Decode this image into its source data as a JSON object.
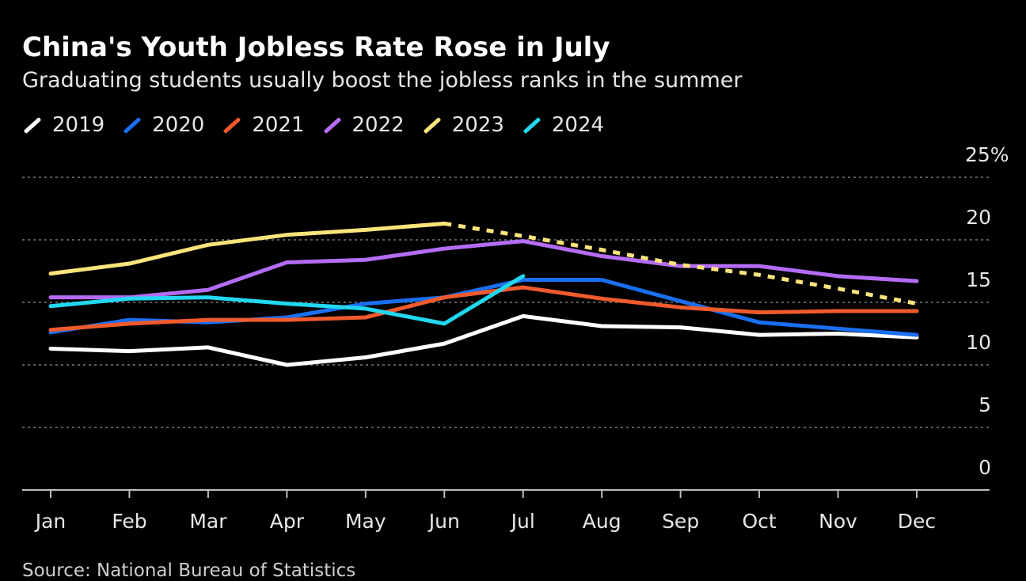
{
  "header": {
    "title": "China's Youth Jobless Rate Rose in July",
    "subtitle": "Graduating students usually boost the jobless ranks in the summer"
  },
  "footer": {
    "source": "Source: National Bureau of Statistics"
  },
  "chart_data": {
    "type": "line",
    "title": "China's Youth Jobless Rate Rose in July",
    "subtitle": "Graduating students usually boost the jobless ranks in the summer",
    "xlabel": "",
    "ylabel": "",
    "categories": [
      "Jan",
      "Feb",
      "Mar",
      "Apr",
      "May",
      "Jun",
      "Jul",
      "Aug",
      "Sep",
      "Oct",
      "Nov",
      "Dec"
    ],
    "y_ticks": [
      "0",
      "5",
      "10",
      "15",
      "20",
      "25%"
    ],
    "ylim": [
      0,
      25
    ],
    "grid": true,
    "legend_position": "top-left",
    "series": [
      {
        "name": "2019",
        "color": "#ffffff",
        "values": [
          11.3,
          11.1,
          11.4,
          10.0,
          10.6,
          11.7,
          13.9,
          13.1,
          13.0,
          12.4,
          12.5,
          12.2
        ]
      },
      {
        "name": "2020",
        "color": "#1a6ff0",
        "values": [
          12.6,
          13.6,
          13.4,
          13.8,
          14.9,
          15.4,
          16.8,
          16.8,
          15.1,
          13.4,
          12.9,
          12.4
        ]
      },
      {
        "name": "2021",
        "color": "#f05a2c",
        "values": [
          12.8,
          13.3,
          13.6,
          13.6,
          13.8,
          15.4,
          16.2,
          15.3,
          14.6,
          14.2,
          14.3,
          14.3
        ]
      },
      {
        "name": "2022",
        "color": "#b56cf5",
        "values": [
          15.4,
          15.4,
          16.0,
          18.2,
          18.4,
          19.3,
          19.9,
          18.7,
          17.9,
          17.9,
          17.1,
          16.7
        ]
      },
      {
        "name": "2023",
        "color": "#fbe47a",
        "values": [
          17.3,
          18.1,
          19.6,
          20.4,
          20.8,
          21.3,
          20.3,
          19.2,
          18.0,
          17.2,
          16.1,
          14.9
        ],
        "solid_through": "Jun",
        "dashed_from": "Jun"
      },
      {
        "name": "2024",
        "color": "#22d8f0",
        "values": [
          14.7,
          15.3,
          15.4,
          14.9,
          14.5,
          13.3,
          17.1,
          null,
          null,
          null,
          null,
          null
        ]
      }
    ]
  }
}
